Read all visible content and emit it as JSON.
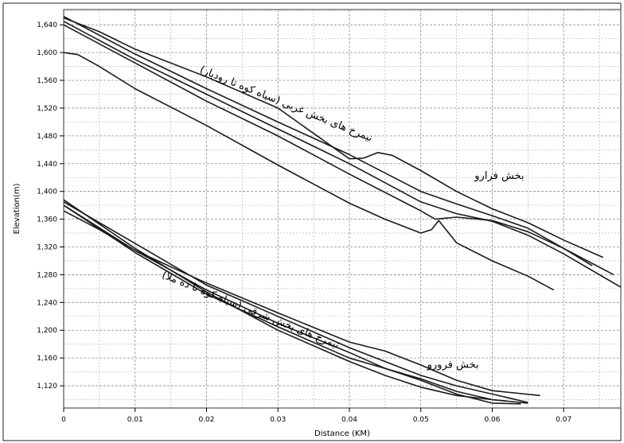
{
  "chart_data": {
    "type": "line",
    "xlabel": "Distance (KM)",
    "ylabel": "Elevation(m)",
    "xlim": [
      0,
      0.078
    ],
    "ylim": [
      1088,
      1662
    ],
    "grid": true,
    "x_ticks": [
      0,
      0.01,
      0.02,
      0.03,
      0.04,
      0.05,
      0.06,
      0.07
    ],
    "x_tick_labels": [
      "0",
      "0.01",
      "0.02",
      "0.03",
      "0.04",
      "0.05",
      "0.06",
      "0.07"
    ],
    "y_ticks": [
      1120,
      1160,
      1200,
      1240,
      1280,
      1320,
      1360,
      1400,
      1440,
      1480,
      1520,
      1560,
      1600,
      1640
    ],
    "y_tick_labels": [
      "1,120",
      "1,160",
      "1,200",
      "1,240",
      "1,280",
      "1,320",
      "1,360",
      "1,400",
      "1,440",
      "1,480",
      "1,520",
      "1,560",
      "1,600",
      "1,640"
    ],
    "series": [
      {
        "x": [
          0,
          0.005,
          0.01,
          0.02,
          0.03,
          0.04,
          0.042,
          0.044,
          0.046,
          0.05,
          0.055,
          0.06,
          0.065,
          0.07,
          0.0755
        ],
        "values": [
          1650,
          1630,
          1605,
          1565,
          1520,
          1447,
          1448,
          1456,
          1452,
          1430,
          1400,
          1375,
          1355,
          1330,
          1305
        ]
      },
      {
        "x": [
          0,
          0.01,
          0.02,
          0.03,
          0.04,
          0.05,
          0.055,
          0.06,
          0.065,
          0.07,
          0.074
        ],
        "values": [
          1652,
          1598,
          1548,
          1500,
          1453,
          1400,
          1382,
          1365,
          1347,
          1318,
          1293
        ]
      },
      {
        "x": [
          0,
          0.01,
          0.02,
          0.03,
          0.04,
          0.05,
          0.055,
          0.06,
          0.065,
          0.07,
          0.078
        ],
        "values": [
          1645,
          1590,
          1540,
          1490,
          1440,
          1385,
          1368,
          1357,
          1337,
          1310,
          1262
        ]
      },
      {
        "x": [
          0,
          0.01,
          0.02,
          0.03,
          0.04,
          0.05,
          0.052,
          0.055,
          0.06,
          0.065,
          0.07,
          0.077
        ],
        "values": [
          1640,
          1585,
          1530,
          1480,
          1425,
          1372,
          1360,
          1363,
          1358,
          1342,
          1318,
          1280
        ]
      },
      {
        "x": [
          0,
          0.002,
          0.005,
          0.01,
          0.02,
          0.03,
          0.04,
          0.045,
          0.05,
          0.0515,
          0.0525,
          0.055,
          0.06,
          0.065,
          0.0686
        ],
        "values": [
          1600,
          1597,
          1580,
          1548,
          1495,
          1438,
          1383,
          1360,
          1340,
          1345,
          1358,
          1326,
          1300,
          1278,
          1258
        ]
      },
      {
        "x": [
          0,
          0.01,
          0.02,
          0.03,
          0.04,
          0.05,
          0.055,
          0.06,
          0.065
        ],
        "values": [
          1385,
          1325,
          1265,
          1220,
          1175,
          1135,
          1120,
          1108,
          1096
        ]
      },
      {
        "x": [
          0,
          0.01,
          0.02,
          0.03,
          0.04,
          0.045,
          0.05,
          0.055,
          0.06,
          0.064
        ],
        "values": [
          1380,
          1315,
          1258,
          1210,
          1168,
          1145,
          1128,
          1108,
          1095,
          1094
        ]
      },
      {
        "x": [
          0,
          0.01,
          0.02,
          0.03,
          0.04,
          0.045,
          0.05,
          0.055,
          0.06,
          0.065
        ],
        "values": [
          1388,
          1318,
          1255,
          1200,
          1155,
          1135,
          1118,
          1106,
          1100,
          1095
        ]
      },
      {
        "x": [
          0,
          0.005,
          0.01,
          0.02,
          0.03,
          0.04,
          0.045,
          0.05,
          0.055,
          0.06,
          0.0667
        ],
        "values": [
          1372,
          1345,
          1315,
          1268,
          1225,
          1183,
          1170,
          1150,
          1128,
          1113,
          1106
        ]
      },
      {
        "x": [
          0,
          0.01,
          0.02,
          0.03,
          0.04,
          0.05,
          0.055,
          0.06,
          0.062
        ],
        "values": [
          1380,
          1312,
          1252,
          1205,
          1160,
          1130,
          1112,
          1100,
          1098
        ]
      }
    ],
    "annotations": [
      {
        "text": "نیمرخ های بخش غربی (سیاه کوه تا رودبار)",
        "x": 0.031,
        "y": 1522,
        "angle": 22
      },
      {
        "text": "بخش فرارو",
        "x": 0.061,
        "y": 1418,
        "angle": 0
      },
      {
        "text": "نیمرخ های بخش شرقی (سیاه کوه تا ده ملا)",
        "x": 0.026,
        "y": 1225,
        "angle": 22
      },
      {
        "text": "بخش فرورو",
        "x": 0.0545,
        "y": 1146,
        "angle": 0
      }
    ]
  }
}
